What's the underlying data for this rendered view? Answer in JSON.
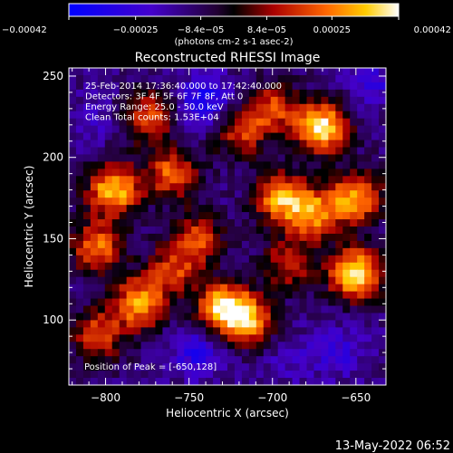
{
  "chart_data": {
    "type": "heatmap",
    "title": "Reconstructed RHESSI Image",
    "xlabel": "Heliocentric X (arcsec)",
    "ylabel": "Heliocentric Y (arcsec)",
    "xlim": [
      -822,
      -632
    ],
    "ylim": [
      60,
      255
    ],
    "xticks": [
      -800,
      -750,
      -700,
      -650
    ],
    "yticks": [
      100,
      150,
      200,
      250
    ],
    "colorbar": {
      "colormap": "rhessi-diverging",
      "range": [
        -0.00042,
        0.00042
      ],
      "tick_labels": [
        "-0.00042",
        "-0.00025",
        "-8.4e-05",
        "8.4e-05",
        "0.00025",
        "0.00042"
      ],
      "unit_label": "(photons cm-2 s-1 asec-2)"
    },
    "annotations": [
      "25-Feb-2014 17:36:40.000 to 17:42:40.000",
      "Detectors: 3F 4F 5F 6F 7F 8F, Att 0",
      "Energy Range: 25.0 - 50.0 keV",
      "Clean     Total counts: 1.53E+04"
    ],
    "peak_label": "Position of Peak = [-650,128]",
    "peak_position": [
      -650,
      128
    ],
    "grid": false,
    "hot_spots": [
      {
        "x": -670,
        "y": 218,
        "value": 0.0004
      },
      {
        "x": -650,
        "y": 128,
        "value": 0.00042
      },
      {
        "x": -695,
        "y": 175,
        "value": 0.0003
      },
      {
        "x": -795,
        "y": 180,
        "value": 0.00035
      },
      {
        "x": -760,
        "y": 190,
        "value": 0.00022
      },
      {
        "x": -780,
        "y": 110,
        "value": 0.0003
      },
      {
        "x": -730,
        "y": 108,
        "value": 0.00032
      },
      {
        "x": -805,
        "y": 90,
        "value": 0.0002
      },
      {
        "x": -715,
        "y": 100,
        "value": 0.00028
      },
      {
        "x": -675,
        "y": 165,
        "value": 0.00025
      },
      {
        "x": -745,
        "y": 150,
        "value": 0.00018
      },
      {
        "x": -805,
        "y": 145,
        "value": 0.00025
      },
      {
        "x": -760,
        "y": 130,
        "value": 0.00015
      },
      {
        "x": -650,
        "y": 175,
        "value": 0.0003
      },
      {
        "x": -700,
        "y": 230,
        "value": 0.00018
      },
      {
        "x": -690,
        "y": 135,
        "value": 0.00015
      },
      {
        "x": -775,
        "y": 225,
        "value": 0.0002
      },
      {
        "x": -720,
        "y": 215,
        "value": 0.00015
      }
    ],
    "cold_spots": [
      {
        "x": -740,
        "y": 235,
        "value": -0.00035
      },
      {
        "x": -745,
        "y": 80,
        "value": -0.0003
      },
      {
        "x": -660,
        "y": 80,
        "value": -0.00025
      },
      {
        "x": -805,
        "y": 225,
        "value": -0.0002
      },
      {
        "x": -640,
        "y": 245,
        "value": -0.00025
      },
      {
        "x": -690,
        "y": 75,
        "value": -0.0002
      }
    ]
  },
  "timestamp": "13-May-2022 06:52"
}
